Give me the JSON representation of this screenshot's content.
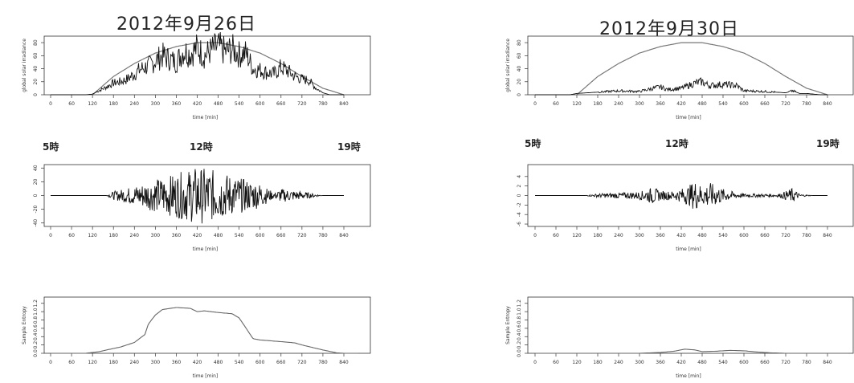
{
  "left": {
    "title": "2012年9月26日",
    "hour_labels": [
      "5時",
      "12時",
      "19時"
    ]
  },
  "right": {
    "title": "2012年9月30日",
    "hour_labels": [
      "5時",
      "12時",
      "19時"
    ]
  },
  "chart_data": [
    {
      "type": "line",
      "panel": "2012年9月26日",
      "row": "irradiance",
      "xlabel": "time [min]",
      "ylabel": "global solar irradiance",
      "xlim": [
        0,
        840
      ],
      "ylim": [
        0,
        90
      ],
      "xticks": [
        0,
        60,
        120,
        180,
        240,
        300,
        360,
        420,
        480,
        540,
        600,
        660,
        720,
        780,
        840
      ],
      "yticks": [
        0,
        20,
        40,
        60,
        80
      ],
      "series": [
        {
          "style": "envelope",
          "x": [
            120,
            180,
            240,
            300,
            360,
            420,
            480,
            540,
            600,
            660,
            720,
            780,
            840
          ],
          "y": [
            0,
            28,
            48,
            64,
            74,
            80,
            80,
            74,
            64,
            48,
            28,
            10,
            0
          ]
        },
        {
          "style": "measured",
          "x": [
            0,
            100,
            120,
            160,
            180,
            200,
            220,
            240,
            260,
            280,
            300,
            320,
            340,
            360,
            380,
            400,
            420,
            440,
            460,
            480,
            500,
            520,
            540,
            560,
            580,
            600,
            620,
            640,
            660,
            680,
            700,
            720,
            740,
            760,
            780,
            800,
            840
          ],
          "y": [
            0,
            0,
            1,
            12,
            18,
            20,
            24,
            32,
            40,
            44,
            52,
            60,
            55,
            50,
            67,
            63,
            72,
            60,
            68,
            74,
            66,
            70,
            62,
            64,
            40,
            38,
            34,
            32,
            42,
            36,
            28,
            24,
            22,
            10,
            3,
            0,
            0
          ]
        }
      ]
    },
    {
      "type": "line",
      "panel": "2012年9月26日",
      "row": "difference",
      "xlabel": "time [min]",
      "ylabel": "",
      "xlim": [
        0,
        840
      ],
      "ylim": [
        -45,
        45
      ],
      "xticks": [
        0,
        60,
        120,
        180,
        240,
        300,
        360,
        420,
        480,
        540,
        600,
        660,
        720,
        780,
        840
      ],
      "yticks": [
        -40,
        -20,
        0,
        20,
        40
      ],
      "envelope": {
        "x": [
          0,
          160,
          180,
          240,
          300,
          360,
          420,
          480,
          540,
          600,
          640,
          660,
          720,
          760,
          780,
          840
        ],
        "amp": [
          0,
          0,
          6,
          14,
          24,
          32,
          42,
          36,
          26,
          18,
          4,
          10,
          6,
          2,
          0,
          0
        ]
      }
    },
    {
      "type": "line",
      "panel": "2012年9月26日",
      "row": "entropy",
      "xlabel": "time [min]",
      "ylabel": "Sample Entropy",
      "xlim": [
        0,
        900
      ],
      "ylim": [
        0,
        1.35
      ],
      "xticks": [
        0,
        60,
        120,
        180,
        240,
        300,
        360,
        420,
        480,
        540,
        600,
        660,
        720,
        780,
        840
      ],
      "yticks": [
        0.0,
        0.2,
        0.4,
        0.6,
        0.8,
        1.0,
        1.2
      ],
      "series": [
        {
          "x": [
            0,
            100,
            140,
            160,
            200,
            240,
            270,
            280,
            300,
            320,
            360,
            400,
            420,
            440,
            480,
            520,
            540,
            560,
            580,
            600,
            660,
            700,
            720,
            780,
            820,
            840,
            880
          ],
          "y": [
            0,
            0,
            0.04,
            0.08,
            0.15,
            0.26,
            0.45,
            0.7,
            0.92,
            1.05,
            1.1,
            1.08,
            1.0,
            1.02,
            0.98,
            0.95,
            0.85,
            0.6,
            0.35,
            0.32,
            0.28,
            0.25,
            0.2,
            0.08,
            0.01,
            0,
            0
          ]
        }
      ]
    },
    {
      "type": "line",
      "panel": "2012年9月30日",
      "row": "irradiance",
      "xlabel": "time [min]",
      "ylabel": "global solar irradiance",
      "xlim": [
        0,
        840
      ],
      "ylim": [
        0,
        90
      ],
      "xticks": [
        0,
        60,
        120,
        180,
        240,
        300,
        360,
        420,
        480,
        540,
        600,
        660,
        720,
        780,
        840
      ],
      "yticks": [
        0,
        20,
        40,
        60,
        80
      ],
      "series": [
        {
          "style": "envelope",
          "x": [
            120,
            180,
            240,
            300,
            360,
            420,
            480,
            540,
            600,
            660,
            720,
            780,
            840
          ],
          "y": [
            0,
            28,
            48,
            64,
            74,
            80,
            80,
            74,
            64,
            48,
            28,
            10,
            0
          ]
        },
        {
          "style": "measured",
          "x": [
            0,
            100,
            120,
            180,
            240,
            300,
            340,
            360,
            380,
            420,
            460,
            480,
            500,
            540,
            580,
            600,
            660,
            720,
            740,
            760,
            780,
            820,
            840
          ],
          "y": [
            0,
            0,
            2,
            4,
            6,
            5,
            10,
            12,
            8,
            10,
            18,
            20,
            14,
            16,
            14,
            6,
            5,
            3,
            6,
            2,
            2,
            0,
            0
          ]
        }
      ]
    },
    {
      "type": "line",
      "panel": "2012年9月30日",
      "row": "difference",
      "xlabel": "time [min]",
      "ylabel": "",
      "xlim": [
        0,
        840
      ],
      "ylim": [
        -6.5,
        6.5
      ],
      "xticks": [
        0,
        60,
        120,
        180,
        240,
        300,
        360,
        420,
        480,
        540,
        600,
        660,
        720,
        780,
        840
      ],
      "yticks": [
        -6,
        -4,
        -2,
        0,
        2,
        4
      ],
      "envelope": {
        "x": [
          0,
          140,
          180,
          240,
          300,
          340,
          360,
          400,
          440,
          460,
          480,
          500,
          540,
          580,
          600,
          700,
          740,
          760,
          800,
          840
        ],
        "amp": [
          0,
          0,
          0.4,
          0.6,
          0.8,
          1.8,
          1.0,
          0.9,
          2.0,
          3.2,
          2.0,
          2.8,
          1.4,
          0.6,
          0.4,
          0.3,
          1.6,
          0.3,
          0,
          0
        ]
      }
    },
    {
      "type": "line",
      "panel": "2012年9月30日",
      "row": "entropy",
      "xlabel": "time [min]",
      "ylabel": "Sample Entropy",
      "xlim": [
        0,
        900
      ],
      "ylim": [
        0,
        1.35
      ],
      "xticks": [
        0,
        60,
        120,
        180,
        240,
        300,
        360,
        420,
        480,
        540,
        600,
        660,
        720,
        780,
        840
      ],
      "yticks": [
        0.0,
        0.2,
        0.4,
        0.6,
        0.8,
        1.0,
        1.2
      ],
      "series": [
        {
          "x": [
            0,
            300,
            360,
            400,
            430,
            460,
            480,
            520,
            560,
            600,
            640,
            680,
            720,
            840,
            900
          ],
          "y": [
            0,
            0,
            0.02,
            0.05,
            0.1,
            0.08,
            0.04,
            0.05,
            0.07,
            0.06,
            0.03,
            0.01,
            0,
            0,
            0
          ]
        }
      ]
    }
  ]
}
